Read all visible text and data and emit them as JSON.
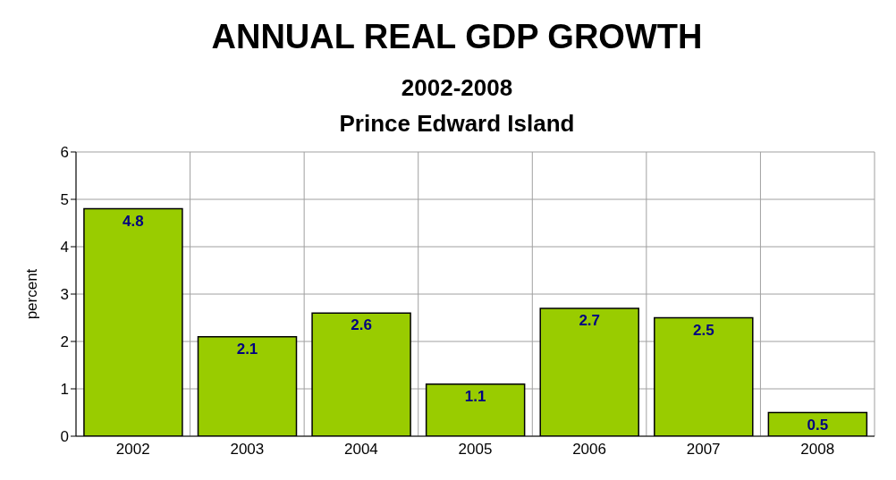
{
  "chart_data": {
    "type": "bar",
    "title": "ANNUAL REAL GDP GROWTH",
    "subtitle": "2002-2008\nPrince Edward Island",
    "ylabel": "percent",
    "categories": [
      "2002",
      "2003",
      "2004",
      "2005",
      "2006",
      "2007",
      "2008"
    ],
    "values": [
      4.8,
      2.1,
      2.6,
      1.1,
      2.7,
      2.5,
      0.5
    ],
    "color": "#99cc00",
    "ylim": [
      0,
      6
    ],
    "yticks": [
      0,
      1,
      2,
      3,
      4,
      5,
      6
    ],
    "grid": true,
    "data_labels": true
  }
}
